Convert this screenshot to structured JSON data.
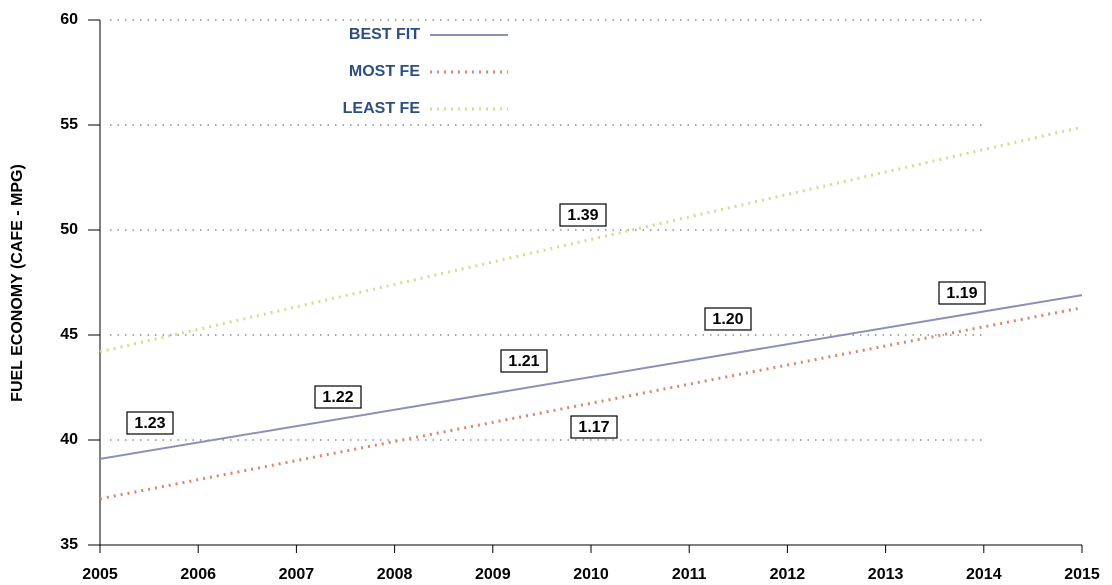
{
  "chart_data": {
    "type": "line",
    "y_label": "FUEL ECONOMY (CAFE - MPG)",
    "x": [
      2005,
      2015
    ],
    "xlim": [
      2005,
      2015
    ],
    "xticks": [
      2005,
      2006,
      2007,
      2008,
      2009,
      2010,
      2011,
      2012,
      2013,
      2014,
      2015
    ],
    "ylim": [
      35,
      60
    ],
    "yticks": [
      35,
      40,
      45,
      50,
      55,
      60
    ],
    "grid": true,
    "legend": "top",
    "series": [
      {
        "name": "BEST FIT",
        "color": "#8a90b8",
        "line_style": "solid",
        "values": [
          39.1,
          46.9
        ]
      },
      {
        "name": "MOST FE",
        "color": "#e08468",
        "line_style": "dotted",
        "values": [
          37.2,
          46.3
        ]
      },
      {
        "name": "LEAST FE",
        "color": "#d9d894",
        "line_style": "dotted",
        "values": [
          44.2,
          54.9
        ]
      }
    ],
    "annotations": [
      "1.23",
      "1.22",
      "1.21",
      "1.20",
      "1.19",
      "1.17",
      "1.39"
    ]
  }
}
